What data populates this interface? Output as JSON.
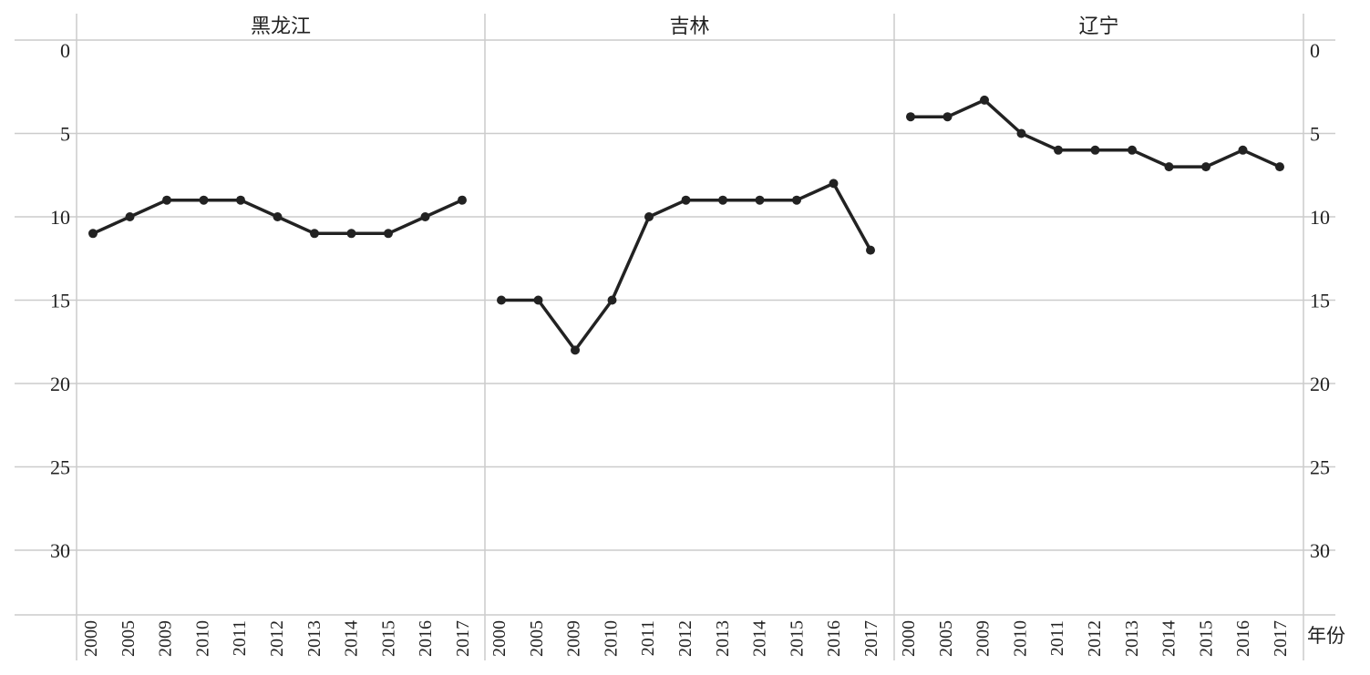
{
  "chart_data": {
    "type": "line",
    "x_unit": "年份",
    "ylim": [
      0,
      34
    ],
    "y_inverted": true,
    "y_ticks": [
      0,
      5,
      10,
      15,
      20,
      25,
      30
    ],
    "grid": true,
    "categories": [
      "2000",
      "2005",
      "2009",
      "2010",
      "2011",
      "2012",
      "2013",
      "2014",
      "2015",
      "2016",
      "2017"
    ],
    "series": [
      {
        "name": "黑龙江",
        "values": [
          11,
          10,
          9,
          9,
          9,
          10,
          11,
          11,
          11,
          10,
          9
        ]
      },
      {
        "name": "吉林",
        "values": [
          15,
          15,
          18,
          15,
          10,
          9,
          9,
          9,
          9,
          8,
          12
        ]
      },
      {
        "name": "辽宁",
        "values": [
          4,
          4,
          3,
          5,
          6,
          6,
          6,
          7,
          7,
          6,
          7
        ]
      }
    ],
    "line_color": "#222222",
    "grid_color": "#cccccc"
  }
}
